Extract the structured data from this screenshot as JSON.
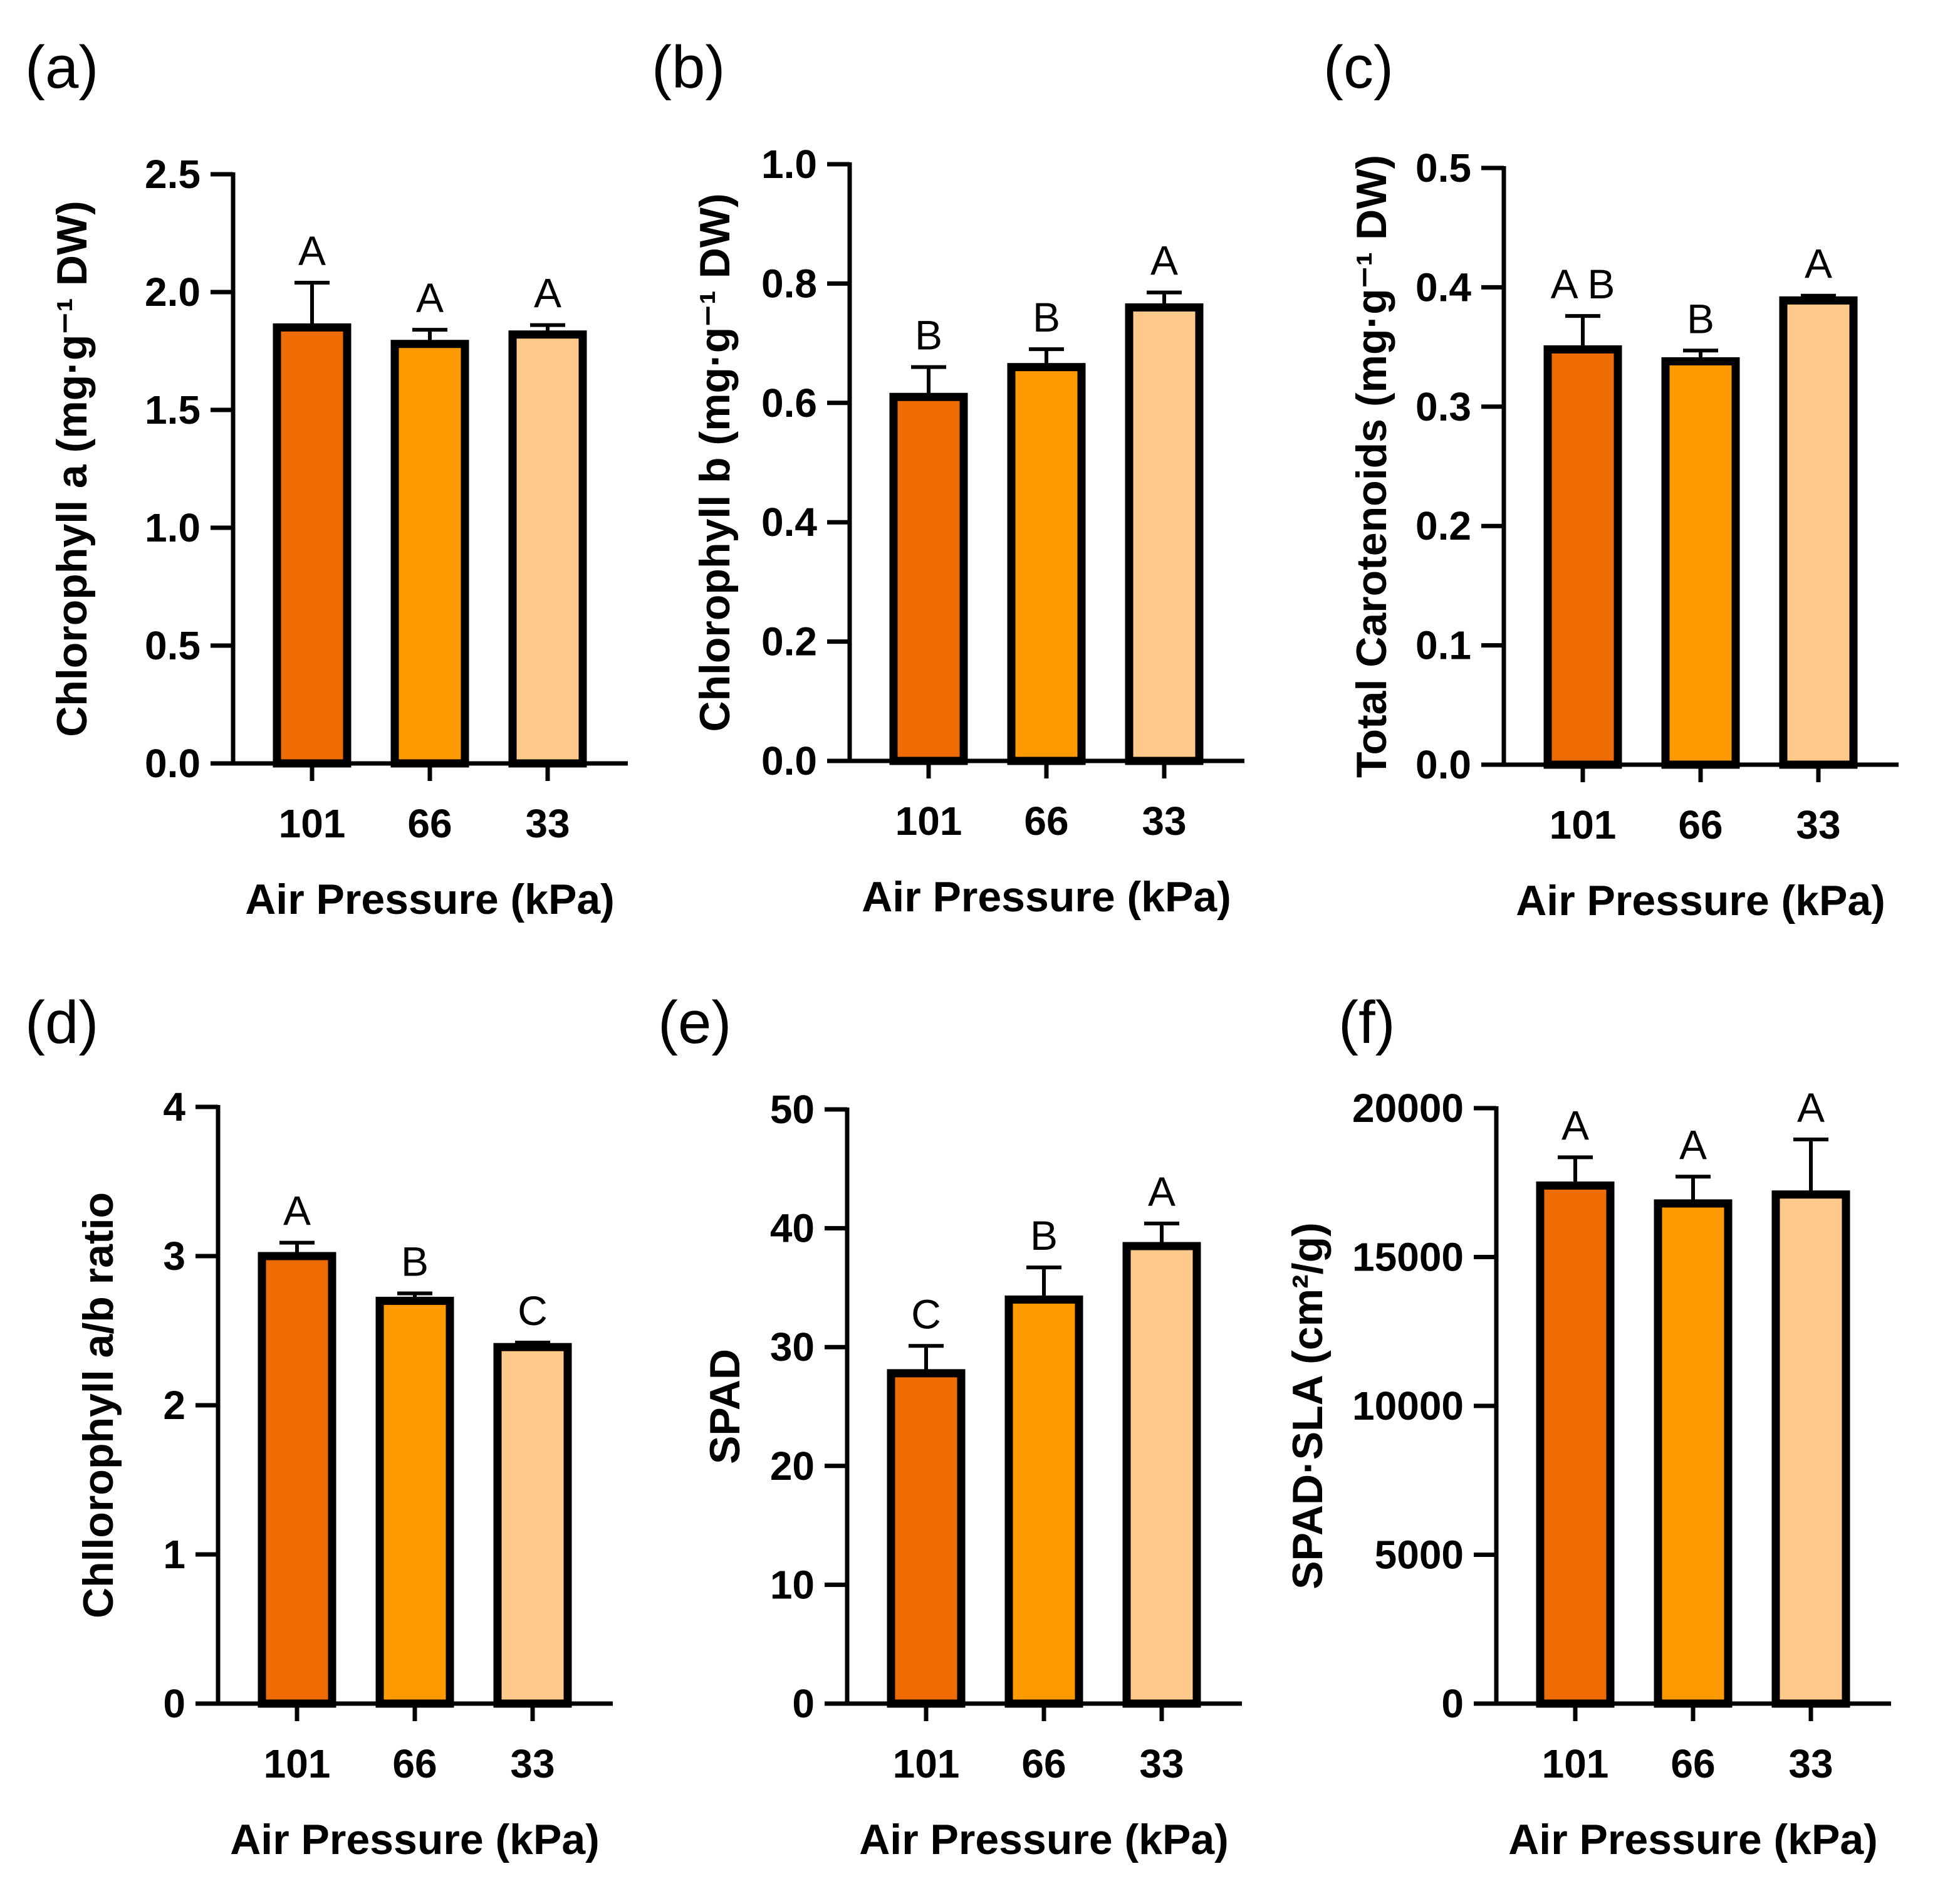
{
  "chart_data": [
    {
      "type": "bar",
      "panel_label": "(a)",
      "categories": [
        "101",
        "66",
        "33"
      ],
      "values": [
        1.85,
        1.78,
        1.82
      ],
      "errors": [
        0.19,
        0.06,
        0.04
      ],
      "significance": [
        "A",
        "A",
        "A"
      ],
      "xlabel": "Air Pressure (kPa)",
      "ylabel": "Chlorophyll a (mg·g⁻¹ DW)",
      "ylim": [
        0,
        2.5
      ],
      "yticks": [
        "0.0",
        "0.5",
        "1.0",
        "1.5",
        "2.0",
        "2.5"
      ],
      "colors": [
        "#EE6C03",
        "#FF9900",
        "#FEC98A"
      ]
    },
    {
      "type": "bar",
      "panel_label": "(b)",
      "categories": [
        "101",
        "66",
        "33"
      ],
      "values": [
        0.61,
        0.66,
        0.76
      ],
      "errors": [
        0.05,
        0.03,
        0.025
      ],
      "significance": [
        "B",
        "B",
        "A"
      ],
      "xlabel": "Air Pressure (kPa)",
      "ylabel": "Chlorophyll b (mg·g⁻¹ DW)",
      "ylim": [
        0,
        1.0
      ],
      "yticks": [
        "0.0",
        "0.2",
        "0.4",
        "0.6",
        "0.8",
        "1.0"
      ],
      "colors": [
        "#EE6C03",
        "#FF9900",
        "#FEC98A"
      ]
    },
    {
      "type": "bar",
      "panel_label": "(c)",
      "categories": [
        "101",
        "66",
        "33"
      ],
      "values": [
        0.348,
        0.338,
        0.389
      ],
      "errors": [
        0.028,
        0.009,
        0.004
      ],
      "significance": [
        "A B",
        "B",
        "A"
      ],
      "xlabel": "Air Pressure (kPa)",
      "ylabel": "Total Carotenoids (mg·g⁻¹ DW)",
      "ylim": [
        0,
        0.5
      ],
      "yticks": [
        "0.0",
        "0.1",
        "0.2",
        "0.3",
        "0.4",
        "0.5"
      ],
      "colors": [
        "#EE6C03",
        "#FF9900",
        "#FEC98A"
      ]
    },
    {
      "type": "bar",
      "panel_label": "(d)",
      "categories": [
        "101",
        "66",
        "33"
      ],
      "values": [
        3.0,
        2.7,
        2.39
      ],
      "errors": [
        0.09,
        0.05,
        0.03
      ],
      "significance": [
        "A",
        "B",
        "C"
      ],
      "xlabel": "Air Pressure (kPa)",
      "ylabel": "Chllorophyll a/b ratio",
      "ylim": [
        0,
        4
      ],
      "yticks": [
        "0",
        "1",
        "2",
        "3",
        "4"
      ],
      "colors": [
        "#EE6C03",
        "#FF9900",
        "#FEC98A"
      ]
    },
    {
      "type": "bar",
      "panel_label": "(e)",
      "categories": [
        "101",
        "66",
        "33"
      ],
      "values": [
        27.8,
        34.0,
        38.5
      ],
      "errors": [
        2.3,
        2.7,
        1.9
      ],
      "significance": [
        "C",
        "B",
        "A"
      ],
      "xlabel": "Air Pressure (kPa)",
      "ylabel": "SPAD",
      "ylim": [
        0,
        50
      ],
      "yticks": [
        "0",
        "10",
        "20",
        "30",
        "40",
        "50"
      ],
      "colors": [
        "#EE6C03",
        "#FF9900",
        "#FEC98A"
      ]
    },
    {
      "type": "bar",
      "panel_label": "(f)",
      "categories": [
        "101",
        "66",
        "33"
      ],
      "values": [
        17400,
        16800,
        17100
      ],
      "errors": [
        950,
        900,
        1850
      ],
      "significance": [
        "A",
        "A",
        "A"
      ],
      "xlabel": "Air Pressure (kPa)",
      "ylabel": "SPAD·SLA (cm²/g)",
      "ylim": [
        0,
        20000
      ],
      "yticks": [
        "0",
        "5000",
        "10000",
        "15000",
        "20000"
      ],
      "colors": [
        "#EE6C03",
        "#FF9900",
        "#FEC98A"
      ]
    }
  ]
}
